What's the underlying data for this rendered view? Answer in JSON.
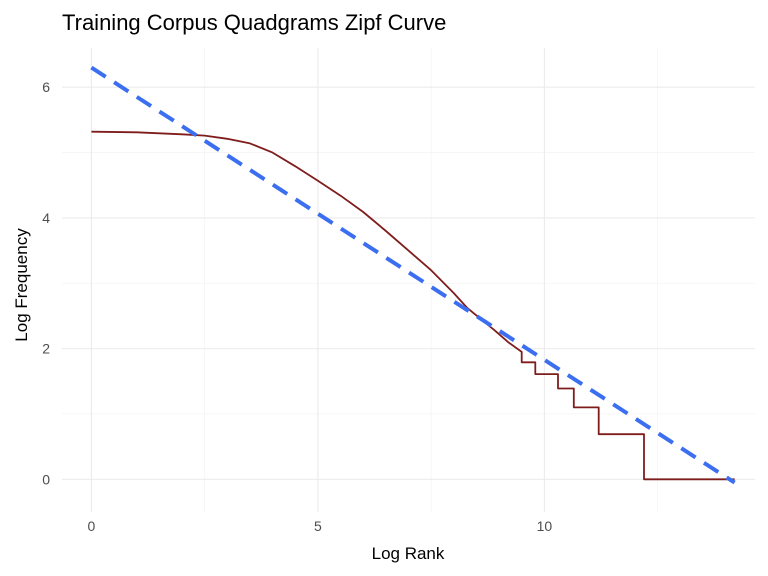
{
  "chart_data": {
    "type": "line",
    "title": "Training Corpus Quadgrams Zipf Curve",
    "xlabel": "Log Rank",
    "ylabel": "Log Frequency",
    "xlim": [
      -0.65,
      14.65
    ],
    "ylim": [
      -0.5,
      6.6
    ],
    "x_ticks": [
      0,
      5,
      10
    ],
    "y_ticks": [
      0,
      2,
      4,
      6
    ],
    "x_minor_ticks": [
      2.5,
      7.5,
      12.5
    ],
    "y_minor_ticks": [
      1,
      3,
      5
    ],
    "grid": true,
    "legend": "none",
    "series": [
      {
        "style": "solid",
        "color": "#7f1d1d",
        "x": [
          0,
          1,
          2,
          2.5,
          3,
          3.5,
          4,
          4.5,
          5,
          5.5,
          6,
          6.5,
          7,
          7.5,
          8,
          8.3,
          8.6,
          8.9,
          9.2,
          9.5,
          9.5,
          9.8,
          9.8,
          10.1,
          10.1,
          10.3,
          10.3,
          10.65,
          10.65,
          11.2,
          11.2,
          12.2,
          12.2,
          14.2
        ],
        "y": [
          5.32,
          5.31,
          5.28,
          5.26,
          5.21,
          5.14,
          5.0,
          4.79,
          4.57,
          4.34,
          4.09,
          3.8,
          3.5,
          3.2,
          2.85,
          2.62,
          2.45,
          2.28,
          2.1,
          1.95,
          1.79,
          1.79,
          1.61,
          1.61,
          1.61,
          1.61,
          1.39,
          1.39,
          1.1,
          1.1,
          0.69,
          0.69,
          0.0,
          0.0
        ]
      },
      {
        "style": "dashed",
        "color": "#3b6ff0",
        "x": [
          0,
          14.2
        ],
        "y": [
          6.3,
          -0.05
        ]
      }
    ]
  }
}
